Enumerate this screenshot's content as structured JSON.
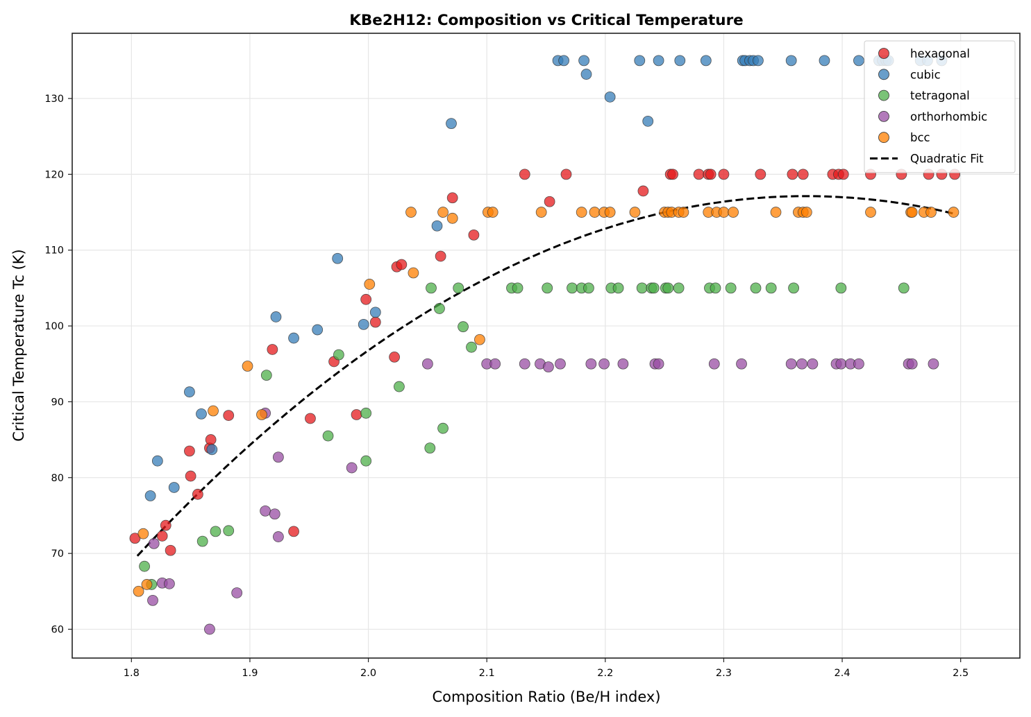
{
  "chart_data": {
    "type": "scatter",
    "title": "KBe2H12: Composition vs Critical Temperature",
    "xlabel": "Composition Ratio (Be/H index)",
    "ylabel": "Critical Temperature Tc (K)",
    "xlim": [
      1.75,
      2.55
    ],
    "ylim": [
      56.2,
      138.6
    ],
    "xticks": [
      1.8,
      1.9,
      2.0,
      2.1,
      2.2,
      2.3,
      2.4,
      2.5
    ],
    "xtick_labels": [
      "1.8",
      "1.9",
      "2.0",
      "2.1",
      "2.2",
      "2.3",
      "2.4",
      "2.5"
    ],
    "yticks": [
      60,
      70,
      80,
      90,
      100,
      110,
      120,
      130
    ],
    "ytick_labels": [
      "60",
      "70",
      "80",
      "90",
      "100",
      "110",
      "120",
      "130"
    ],
    "grid": true,
    "legend_position": "top-right",
    "series": [
      {
        "name": "hexagonal",
        "color": "#e41a1c",
        "points": [
          [
            1.803,
            72.0
          ],
          [
            1.826,
            72.3
          ],
          [
            1.829,
            73.7
          ],
          [
            1.833,
            70.4
          ],
          [
            1.849,
            83.5
          ],
          [
            1.85,
            80.2
          ],
          [
            1.856,
            77.8
          ],
          [
            1.866,
            83.9
          ],
          [
            1.867,
            85.0
          ],
          [
            1.882,
            88.2
          ],
          [
            1.919,
            96.9
          ],
          [
            1.937,
            72.9
          ],
          [
            1.951,
            87.8
          ],
          [
            1.971,
            95.3
          ],
          [
            1.99,
            88.3
          ],
          [
            1.998,
            103.5
          ],
          [
            2.006,
            100.5
          ],
          [
            2.022,
            95.9
          ],
          [
            2.024,
            107.8
          ],
          [
            2.028,
            108.1
          ],
          [
            2.061,
            109.2
          ],
          [
            2.071,
            116.9
          ],
          [
            2.089,
            112.0
          ],
          [
            2.132,
            120.0
          ],
          [
            2.153,
            116.4
          ],
          [
            2.167,
            120.0
          ],
          [
            2.232,
            117.8
          ],
          [
            2.255,
            120.0
          ],
          [
            2.257,
            120.0
          ],
          [
            2.279,
            120.0
          ],
          [
            2.287,
            120.0
          ],
          [
            2.289,
            120.0
          ],
          [
            2.3,
            120.0
          ],
          [
            2.331,
            120.0
          ],
          [
            2.358,
            120.0
          ],
          [
            2.367,
            120.0
          ],
          [
            2.392,
            120.0
          ],
          [
            2.397,
            120.0
          ],
          [
            2.401,
            120.0
          ],
          [
            2.424,
            120.0
          ],
          [
            2.45,
            120.0
          ],
          [
            2.473,
            120.0
          ],
          [
            2.484,
            120.0
          ],
          [
            2.495,
            120.0
          ]
        ]
      },
      {
        "name": "cubic",
        "color": "#377eb8",
        "points": [
          [
            1.816,
            77.6
          ],
          [
            1.822,
            82.2
          ],
          [
            1.836,
            78.7
          ],
          [
            1.849,
            91.3
          ],
          [
            1.859,
            88.4
          ],
          [
            1.868,
            83.7
          ],
          [
            1.922,
            101.2
          ],
          [
            1.937,
            98.4
          ],
          [
            1.957,
            99.5
          ],
          [
            1.974,
            108.9
          ],
          [
            1.996,
            100.2
          ],
          [
            2.006,
            101.8
          ],
          [
            2.058,
            113.2
          ],
          [
            2.07,
            126.7
          ],
          [
            2.16,
            135.0
          ],
          [
            2.165,
            135.0
          ],
          [
            2.182,
            135.0
          ],
          [
            2.184,
            133.2
          ],
          [
            2.204,
            130.2
          ],
          [
            2.229,
            135.0
          ],
          [
            2.236,
            127.0
          ],
          [
            2.245,
            135.0
          ],
          [
            2.263,
            135.0
          ],
          [
            2.285,
            135.0
          ],
          [
            2.316,
            135.0
          ],
          [
            2.318,
            135.0
          ],
          [
            2.322,
            135.0
          ],
          [
            2.325,
            135.0
          ],
          [
            2.329,
            135.0
          ],
          [
            2.357,
            135.0
          ],
          [
            2.385,
            135.0
          ],
          [
            2.414,
            135.0
          ],
          [
            2.431,
            135.0
          ],
          [
            2.434,
            135.0
          ],
          [
            2.437,
            135.0
          ],
          [
            2.439,
            135.0
          ],
          [
            2.466,
            135.0
          ],
          [
            2.472,
            135.0
          ],
          [
            2.484,
            135.0
          ]
        ]
      },
      {
        "name": "tetragonal",
        "color": "#4daf4a",
        "points": [
          [
            1.811,
            68.3
          ],
          [
            1.817,
            65.9
          ],
          [
            1.86,
            71.6
          ],
          [
            1.871,
            72.9
          ],
          [
            1.882,
            73.0
          ],
          [
            1.914,
            93.5
          ],
          [
            1.966,
            85.5
          ],
          [
            1.975,
            96.2
          ],
          [
            1.998,
            88.5
          ],
          [
            1.998,
            82.2
          ],
          [
            2.026,
            92.0
          ],
          [
            2.052,
            83.9
          ],
          [
            2.053,
            105.0
          ],
          [
            2.06,
            102.3
          ],
          [
            2.063,
            86.5
          ],
          [
            2.076,
            105.0
          ],
          [
            2.08,
            99.9
          ],
          [
            2.087,
            97.2
          ],
          [
            2.121,
            105.0
          ],
          [
            2.126,
            105.0
          ],
          [
            2.151,
            105.0
          ],
          [
            2.172,
            105.0
          ],
          [
            2.18,
            105.0
          ],
          [
            2.186,
            105.0
          ],
          [
            2.205,
            105.0
          ],
          [
            2.211,
            105.0
          ],
          [
            2.231,
            105.0
          ],
          [
            2.239,
            105.0
          ],
          [
            2.241,
            105.0
          ],
          [
            2.251,
            105.0
          ],
          [
            2.253,
            105.0
          ],
          [
            2.262,
            105.0
          ],
          [
            2.288,
            105.0
          ],
          [
            2.293,
            105.0
          ],
          [
            2.306,
            105.0
          ],
          [
            2.327,
            105.0
          ],
          [
            2.34,
            105.0
          ],
          [
            2.359,
            105.0
          ],
          [
            2.399,
            105.0
          ],
          [
            2.452,
            105.0
          ]
        ]
      },
      {
        "name": "orthorhombic",
        "color": "#984ea3",
        "points": [
          [
            1.818,
            63.8
          ],
          [
            1.819,
            71.3
          ],
          [
            1.826,
            66.1
          ],
          [
            1.832,
            66.0
          ],
          [
            1.866,
            60.0
          ],
          [
            1.889,
            64.8
          ],
          [
            1.913,
            88.5
          ],
          [
            1.913,
            75.6
          ],
          [
            1.921,
            75.2
          ],
          [
            1.924,
            82.7
          ],
          [
            1.924,
            72.2
          ],
          [
            1.986,
            81.3
          ],
          [
            2.05,
            95.0
          ],
          [
            2.1,
            95.0
          ],
          [
            2.107,
            95.0
          ],
          [
            2.132,
            95.0
          ],
          [
            2.145,
            95.0
          ],
          [
            2.152,
            94.6
          ],
          [
            2.162,
            95.0
          ],
          [
            2.188,
            95.0
          ],
          [
            2.199,
            95.0
          ],
          [
            2.215,
            95.0
          ],
          [
            2.242,
            95.0
          ],
          [
            2.245,
            95.0
          ],
          [
            2.292,
            95.0
          ],
          [
            2.315,
            95.0
          ],
          [
            2.357,
            95.0
          ],
          [
            2.366,
            95.0
          ],
          [
            2.375,
            95.0
          ],
          [
            2.395,
            95.0
          ],
          [
            2.399,
            95.0
          ],
          [
            2.407,
            95.0
          ],
          [
            2.414,
            95.0
          ],
          [
            2.456,
            95.0
          ],
          [
            2.459,
            95.0
          ],
          [
            2.477,
            95.0
          ]
        ]
      },
      {
        "name": "bcc",
        "color": "#ff7f00",
        "points": [
          [
            1.806,
            65.0
          ],
          [
            1.81,
            72.6
          ],
          [
            1.813,
            65.9
          ],
          [
            1.869,
            88.8
          ],
          [
            1.898,
            94.7
          ],
          [
            1.91,
            88.3
          ],
          [
            2.001,
            105.5
          ],
          [
            2.036,
            115.0
          ],
          [
            2.038,
            107.0
          ],
          [
            2.063,
            115.0
          ],
          [
            2.071,
            114.2
          ],
          [
            2.094,
            98.2
          ],
          [
            2.101,
            115.0
          ],
          [
            2.105,
            115.0
          ],
          [
            2.146,
            115.0
          ],
          [
            2.18,
            115.0
          ],
          [
            2.191,
            115.0
          ],
          [
            2.199,
            115.0
          ],
          [
            2.204,
            115.0
          ],
          [
            2.225,
            115.0
          ],
          [
            2.25,
            115.0
          ],
          [
            2.253,
            115.0
          ],
          [
            2.256,
            115.0
          ],
          [
            2.262,
            115.0
          ],
          [
            2.266,
            115.0
          ],
          [
            2.287,
            115.0
          ],
          [
            2.294,
            115.0
          ],
          [
            2.3,
            115.0
          ],
          [
            2.308,
            115.0
          ],
          [
            2.344,
            115.0
          ],
          [
            2.363,
            115.0
          ],
          [
            2.367,
            115.0
          ],
          [
            2.37,
            115.0
          ],
          [
            2.424,
            115.0
          ],
          [
            2.458,
            115.0
          ],
          [
            2.459,
            115.0
          ],
          [
            2.469,
            115.0
          ],
          [
            2.475,
            115.0
          ],
          [
            2.494,
            115.0
          ]
        ]
      }
    ],
    "fit": {
      "name": "Quadratic Fit",
      "color": "#000000",
      "style": "dashed",
      "x_range": [
        1.805,
        2.495
      ],
      "points": [
        [
          1.805,
          69.4
        ],
        [
          1.83,
          73.6
        ],
        [
          1.86,
          78.5
        ],
        [
          1.9,
          84.6
        ],
        [
          1.95,
          91.2
        ],
        [
          2.0,
          96.9
        ],
        [
          2.05,
          101.9
        ],
        [
          2.1,
          106.3
        ],
        [
          2.15,
          109.9
        ],
        [
          2.2,
          112.7
        ],
        [
          2.25,
          114.9
        ],
        [
          2.3,
          116.3
        ],
        [
          2.35,
          116.9
        ],
        [
          2.385,
          117.0
        ],
        [
          2.42,
          116.8
        ],
        [
          2.45,
          116.3
        ],
        [
          2.495,
          114.9
        ]
      ]
    }
  }
}
